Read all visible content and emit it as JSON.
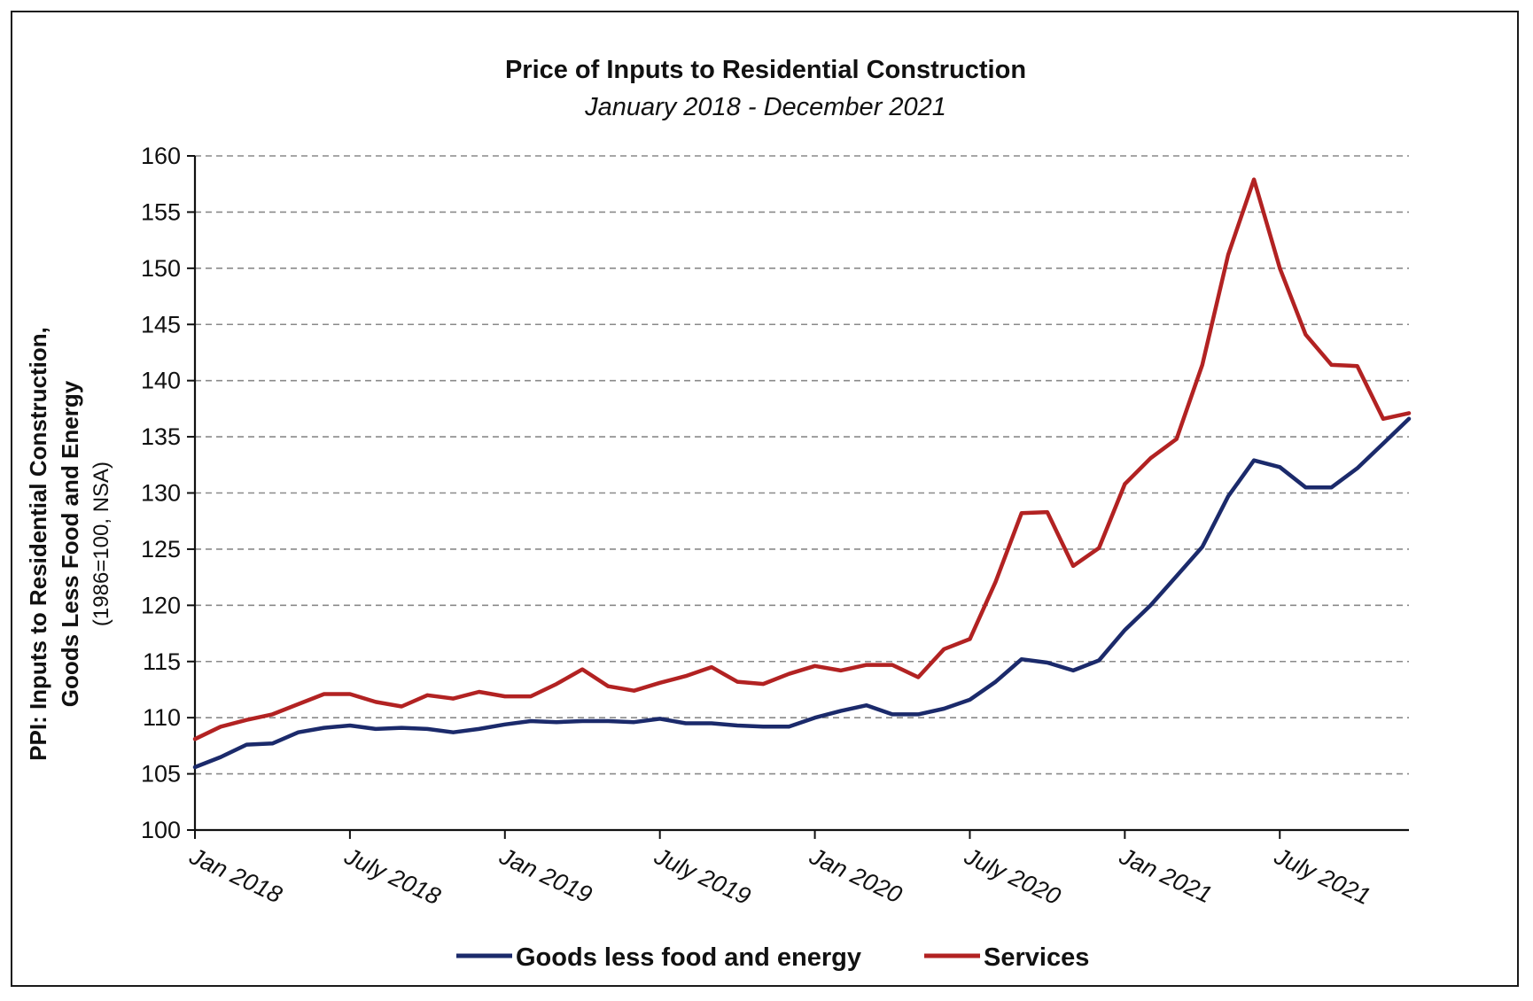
{
  "chart_data": {
    "type": "line",
    "title": "Price of Inputs to Residential Construction",
    "subtitle": "January 2018 - December 2021",
    "ylabel_line1": "PPI: Inputs to Residential Construction,",
    "ylabel_line2": "Goods Less Food and Energy",
    "ylabel_line3": "(1986=100, NSA)",
    "ylim": [
      100,
      160
    ],
    "yticks": [
      100,
      105,
      110,
      115,
      120,
      125,
      130,
      135,
      140,
      145,
      150,
      155,
      160
    ],
    "grid": true,
    "legend_position": "bottom",
    "x_tick_labels": [
      {
        "index": 0,
        "label": "Jan 2018"
      },
      {
        "index": 6,
        "label": "July 2018"
      },
      {
        "index": 12,
        "label": "Jan 2019"
      },
      {
        "index": 18,
        "label": "July 2019"
      },
      {
        "index": 24,
        "label": "Jan 2020"
      },
      {
        "index": 30,
        "label": "July 2020"
      },
      {
        "index": 36,
        "label": "Jan 2021"
      },
      {
        "index": 42,
        "label": "July 2021"
      }
    ],
    "x": [
      "2018-01",
      "2018-02",
      "2018-03",
      "2018-04",
      "2018-05",
      "2018-06",
      "2018-07",
      "2018-08",
      "2018-09",
      "2018-10",
      "2018-11",
      "2018-12",
      "2019-01",
      "2019-02",
      "2019-03",
      "2019-04",
      "2019-05",
      "2019-06",
      "2019-07",
      "2019-08",
      "2019-09",
      "2019-10",
      "2019-11",
      "2019-12",
      "2020-01",
      "2020-02",
      "2020-03",
      "2020-04",
      "2020-05",
      "2020-06",
      "2020-07",
      "2020-08",
      "2020-09",
      "2020-10",
      "2020-11",
      "2020-12",
      "2021-01",
      "2021-02",
      "2021-03",
      "2021-04",
      "2021-05",
      "2021-06",
      "2021-07",
      "2021-08",
      "2021-09",
      "2021-10",
      "2021-11",
      "2021-12"
    ],
    "series": [
      {
        "name": "Goods less food and energy",
        "color": "#1b2a6b",
        "values": [
          105.6,
          106.5,
          107.6,
          107.7,
          108.7,
          109.1,
          109.3,
          109.0,
          109.1,
          109.0,
          108.7,
          109.0,
          109.4,
          109.7,
          109.6,
          109.7,
          109.7,
          109.6,
          109.9,
          109.5,
          109.5,
          109.3,
          109.2,
          109.2,
          110.0,
          110.6,
          111.1,
          110.3,
          110.3,
          110.8,
          111.6,
          113.2,
          115.2,
          114.9,
          114.2,
          115.1,
          117.8,
          120.0,
          122.6,
          125.2,
          129.7,
          132.9,
          132.3,
          130.5,
          130.5,
          132.2,
          134.4,
          136.6
        ]
      },
      {
        "name": "Services",
        "color": "#b22222",
        "values": [
          108.1,
          109.2,
          109.8,
          110.3,
          111.2,
          112.1,
          112.1,
          111.4,
          111.0,
          112.0,
          111.7,
          112.3,
          111.9,
          111.9,
          113.0,
          114.3,
          112.8,
          112.4,
          113.1,
          113.7,
          114.5,
          113.2,
          113.0,
          113.9,
          114.6,
          114.2,
          114.7,
          114.7,
          113.6,
          116.1,
          117.0,
          122.1,
          128.2,
          128.3,
          123.5,
          125.1,
          130.8,
          133.1,
          134.8,
          141.4,
          151.2,
          157.9,
          150.0,
          144.1,
          141.4,
          141.3,
          136.6,
          137.1
        ]
      }
    ]
  }
}
